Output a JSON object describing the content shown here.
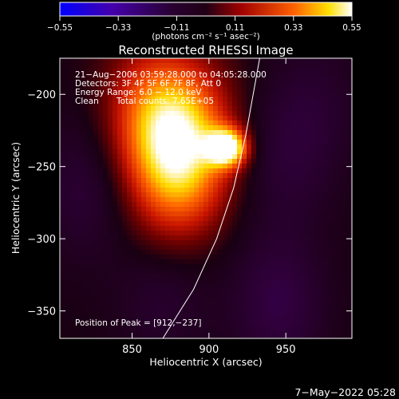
{
  "chart_data": {
    "type": "heatmap",
    "title": "Reconstructed RHESSI Image",
    "xlabel": "Heliocentric X (arcsec)",
    "ylabel": "Heliocentric Y (arcsec)",
    "xlim": [
      803,
      993
    ],
    "ylim": [
      -369,
      -175
    ],
    "x_ticks": [
      850,
      900,
      950
    ],
    "y_ticks": [
      -200,
      -250,
      -300,
      -350
    ],
    "x_tick_labels": [
      "850",
      "900",
      "950"
    ],
    "y_tick_labels": [
      "−200",
      "−250",
      "−300",
      "−350"
    ],
    "colorbar": {
      "min": -0.55,
      "max": 0.55,
      "ticks": [
        "−0.55",
        "−0.33",
        "−0.11",
        "0.11",
        "0.33",
        "0.55"
      ],
      "unit_label": "(photons cm⁻² s⁻¹ asec⁻²)",
      "colormap": "blue-purple-red-yellow-white"
    },
    "annotations": {
      "time_range": "21−Aug−2006 03:59:28.000 to 04:05:28.000",
      "detectors": "Detectors: 3F 4F 5F 6F 7F 8F, Att 0",
      "energy_range": "Energy Range: 6.0 − 12.0 keV",
      "algorithm": "Clean",
      "total_counts": "Total counts: 7.65E+05",
      "peak_position": "Position of Peak = [912,−237]"
    },
    "peak": {
      "x": 912,
      "y": -237
    },
    "sources": [
      {
        "x": 912,
        "y": -237,
        "value": 0.55
      },
      {
        "x": 886,
        "y": -230,
        "value": 0.3
      },
      {
        "x": 862,
        "y": -215,
        "value": 0.26
      },
      {
        "x": 880,
        "y": -255,
        "value": 0.18
      },
      {
        "x": 870,
        "y": -290,
        "value": 0.07
      },
      {
        "x": 950,
        "y": -245,
        "value": -0.1
      },
      {
        "x": 820,
        "y": -265,
        "value": -0.12
      },
      {
        "x": 945,
        "y": -345,
        "value": -0.16
      },
      {
        "x": 870,
        "y": -335,
        "value": -0.12
      },
      {
        "x": 970,
        "y": -205,
        "value": -0.08
      }
    ],
    "limb_curve": [
      [
        870,
        -369
      ],
      [
        890,
        -335
      ],
      [
        905,
        -300
      ],
      [
        916,
        -265
      ],
      [
        924,
        -228
      ],
      [
        933,
        -175
      ]
    ]
  },
  "footer": {
    "date": "7−May−2022 05:28"
  },
  "colors": {
    "background": "#000000",
    "text": "#ffffff"
  }
}
